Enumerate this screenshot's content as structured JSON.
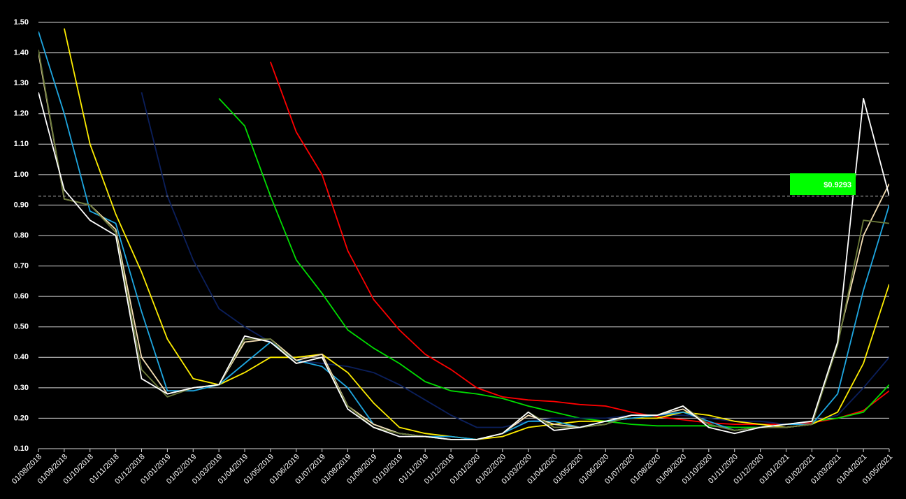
{
  "chart_data": {
    "type": "line",
    "x": [
      "01/08/2018",
      "01/09/2018",
      "01/10/2018",
      "01/11/2018",
      "01/12/2018",
      "01/01/2019",
      "01/02/2019",
      "01/03/2019",
      "01/04/2019",
      "01/05/2019",
      "01/06/2019",
      "01/07/2019",
      "01/08/2019",
      "01/09/2019",
      "01/10/2019",
      "01/11/2019",
      "01/12/2019",
      "01/01/2020",
      "01/02/2020",
      "01/03/2020",
      "01/04/2020",
      "01/05/2020",
      "01/06/2020",
      "01/07/2020",
      "01/08/2020",
      "01/09/2020",
      "01/10/2020",
      "01/11/2020",
      "01/12/2020",
      "01/01/2021",
      "01/02/2021",
      "01/03/2021",
      "01/04/2021",
      "01/05/2021"
    ],
    "ylim": [
      0.1,
      1.5
    ],
    "yticks": [
      {
        "value": 0.1,
        "label": "0.10"
      },
      {
        "value": 0.2,
        "label": "0.20"
      },
      {
        "value": 0.3,
        "label": "0.30"
      },
      {
        "value": 0.4,
        "label": "0.40"
      },
      {
        "value": 0.5,
        "label": "0.50"
      },
      {
        "value": 0.6,
        "label": "0.60"
      },
      {
        "value": 0.7,
        "label": "0.70"
      },
      {
        "value": 0.8,
        "label": "0.80"
      },
      {
        "value": 0.9,
        "label": "0.90"
      },
      {
        "value": 1.0,
        "label": "1.00"
      },
      {
        "value": 1.1,
        "label": "1.10"
      },
      {
        "value": 1.2,
        "label": "1.20"
      },
      {
        "value": 1.3,
        "label": "1.30"
      },
      {
        "value": 1.4,
        "label": "1.40"
      },
      {
        "value": 1.5,
        "label": "1.50"
      }
    ],
    "grid": true,
    "current_price": {
      "value": 0.9293,
      "label": "$0.9293",
      "color": "#00ff00"
    },
    "series": [
      {
        "color": "#ff0000",
        "values": [
          null,
          null,
          null,
          null,
          null,
          null,
          null,
          null,
          null,
          1.37,
          1.14,
          1.0,
          0.75,
          0.59,
          0.49,
          0.41,
          0.36,
          0.3,
          0.27,
          0.26,
          0.255,
          0.245,
          0.24,
          0.22,
          0.205,
          0.195,
          0.185,
          0.18,
          0.18,
          0.18,
          0.185,
          0.2,
          0.225,
          0.29
        ]
      },
      {
        "color": "#00dd00",
        "values": [
          null,
          null,
          null,
          null,
          null,
          null,
          null,
          1.25,
          1.16,
          0.93,
          0.72,
          0.61,
          0.49,
          0.43,
          0.38,
          0.32,
          0.29,
          0.28,
          0.265,
          0.24,
          0.22,
          0.2,
          0.19,
          0.18,
          0.175,
          0.175,
          0.175,
          0.17,
          0.17,
          0.18,
          0.19,
          0.2,
          0.22,
          0.31
        ]
      },
      {
        "color": "#0b1f5c",
        "values": [
          null,
          null,
          null,
          null,
          1.27,
          0.93,
          0.72,
          0.56,
          0.5,
          0.45,
          0.39,
          0.38,
          0.37,
          0.35,
          0.31,
          0.26,
          0.21,
          0.17,
          0.17,
          0.19,
          0.2,
          0.2,
          0.2,
          0.21,
          0.21,
          0.21,
          0.2,
          0.19,
          0.19,
          0.18,
          0.19,
          0.21,
          0.3,
          0.4
        ]
      },
      {
        "color": "#ffee00",
        "values": [
          null,
          1.48,
          1.1,
          0.87,
          0.68,
          0.46,
          0.33,
          0.31,
          0.35,
          0.4,
          0.4,
          0.41,
          0.35,
          0.25,
          0.17,
          0.15,
          0.14,
          0.13,
          0.14,
          0.17,
          0.18,
          0.19,
          0.19,
          0.2,
          0.2,
          0.22,
          0.21,
          0.19,
          0.18,
          0.17,
          0.18,
          0.22,
          0.38,
          0.64
        ]
      },
      {
        "color": "#1ea7e1",
        "values": [
          1.47,
          1.2,
          0.88,
          0.84,
          0.55,
          0.29,
          0.29,
          0.31,
          0.38,
          0.45,
          0.39,
          0.37,
          0.3,
          0.18,
          0.15,
          0.14,
          0.14,
          0.13,
          0.15,
          0.19,
          0.19,
          0.17,
          0.19,
          0.2,
          0.21,
          0.22,
          0.19,
          0.16,
          0.17,
          0.18,
          0.18,
          0.28,
          0.62,
          0.9
        ]
      },
      {
        "color": "#f5deb3",
        "values": [
          1.4,
          0.92,
          0.9,
          0.82,
          0.4,
          0.28,
          0.3,
          0.31,
          0.45,
          0.46,
          0.39,
          0.41,
          0.24,
          0.18,
          0.15,
          0.14,
          0.13,
          0.13,
          0.15,
          0.21,
          0.18,
          0.17,
          0.18,
          0.21,
          0.21,
          0.23,
          0.18,
          0.16,
          0.17,
          0.17,
          0.18,
          0.45,
          0.8,
          0.97
        ]
      },
      {
        "color": "#6b7a3a",
        "values": [
          1.41,
          0.92,
          0.9,
          0.81,
          0.36,
          0.27,
          0.3,
          0.31,
          0.46,
          0.46,
          0.38,
          0.4,
          0.24,
          0.17,
          0.15,
          0.14,
          0.13,
          0.13,
          0.15,
          0.22,
          0.17,
          0.17,
          0.18,
          0.21,
          0.21,
          0.24,
          0.18,
          0.16,
          0.17,
          0.17,
          0.18,
          0.44,
          0.85,
          0.84
        ]
      },
      {
        "color": "#ffffff",
        "values": [
          1.27,
          0.95,
          0.85,
          0.8,
          0.33,
          0.28,
          0.3,
          0.31,
          0.47,
          0.45,
          0.38,
          0.4,
          0.23,
          0.17,
          0.14,
          0.14,
          0.13,
          0.13,
          0.15,
          0.22,
          0.16,
          0.17,
          0.19,
          0.21,
          0.21,
          0.24,
          0.17,
          0.15,
          0.17,
          0.18,
          0.19,
          0.45,
          1.25,
          0.93
        ]
      }
    ]
  }
}
